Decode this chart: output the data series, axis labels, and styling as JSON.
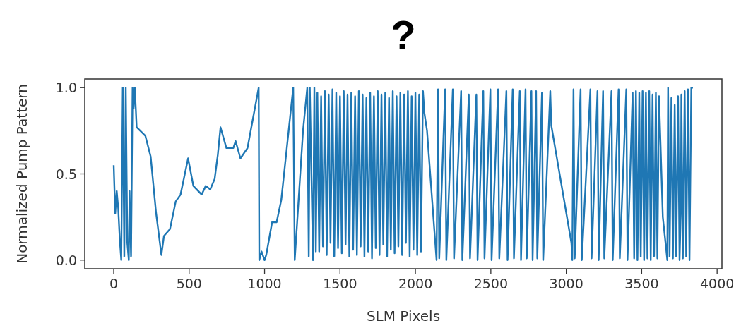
{
  "chart_data": {
    "type": "line",
    "title": "?",
    "xlabel": "SLM Pixels",
    "ylabel": "Normalized Pump Pattern",
    "xlim": [
      -192,
      4032
    ],
    "xticks": [
      0,
      500,
      1000,
      1500,
      2000,
      2500,
      3000,
      3500,
      4000
    ],
    "ylim": [
      -0.05,
      1.05
    ],
    "yticks": [
      {
        "value": 0,
        "label": "0.0"
      },
      {
        "value": 0.5,
        "label": "0.5"
      },
      {
        "value": 1,
        "label": "1.0"
      }
    ],
    "grid": false,
    "series": [
      {
        "color": "#1f77b4",
        "x": [
          0,
          10,
          20,
          30,
          40,
          50,
          60,
          70,
          80,
          90,
          100,
          105,
          115,
          125,
          132,
          140,
          152,
          210,
          245,
          280,
          316,
          333,
          373,
          411,
          443,
          493,
          528,
          583,
          610,
          640,
          669,
          690,
          708,
          747,
          793,
          808,
          840,
          887,
          961,
          965,
          980,
          1000,
          1011,
          1050,
          1080,
          1111,
          1190,
          1200,
          1255,
          1283,
          1293,
          1300,
          1321,
          1330,
          1340,
          1350,
          1362,
          1375,
          1387,
          1400,
          1412,
          1425,
          1437,
          1450,
          1462,
          1475,
          1487,
          1500,
          1512,
          1525,
          1537,
          1550,
          1562,
          1575,
          1587,
          1600,
          1612,
          1625,
          1637,
          1650,
          1662,
          1675,
          1687,
          1700,
          1712,
          1725,
          1737,
          1750,
          1762,
          1775,
          1787,
          1800,
          1812,
          1825,
          1837,
          1850,
          1862,
          1875,
          1887,
          1900,
          1912,
          1925,
          1937,
          1950,
          1962,
          1975,
          1987,
          2000,
          2012,
          2025,
          2037,
          2050,
          2060,
          2077,
          2140,
          2150,
          2158,
          2197,
          2205,
          2248,
          2256,
          2303,
          2311,
          2354,
          2362,
          2404,
          2412,
          2450,
          2458,
          2497,
          2505,
          2548,
          2556,
          2603,
          2611,
          2645,
          2653,
          2692,
          2700,
          2730,
          2738,
          2769,
          2777,
          2800,
          2808,
          2839,
          2847,
          2894,
          2901,
          3034,
          3040,
          3048,
          3056,
          3095,
          3103,
          3160,
          3168,
          3207,
          3215,
          3244,
          3252,
          3300,
          3308,
          3347,
          3355,
          3398,
          3406,
          3440,
          3450,
          3462,
          3472,
          3484,
          3494,
          3506,
          3516,
          3528,
          3538,
          3550,
          3560,
          3572,
          3582,
          3594,
          3604,
          3615,
          3640,
          3670,
          3675,
          3685,
          3697,
          3707,
          3719,
          3729,
          3741,
          3751,
          3760,
          3763,
          3773,
          3785,
          3795,
          3807,
          3817,
          3829,
          3840
        ],
        "values": [
          0.55,
          0.27,
          0.4,
          0.3,
          0.12,
          0.0,
          1.0,
          0.02,
          1.0,
          0.1,
          0.0,
          0.4,
          0.02,
          1.0,
          0.88,
          1.0,
          0.77,
          0.72,
          0.6,
          0.28,
          0.03,
          0.14,
          0.18,
          0.34,
          0.38,
          0.59,
          0.43,
          0.38,
          0.43,
          0.41,
          0.47,
          0.61,
          0.77,
          0.65,
          0.65,
          0.69,
          0.59,
          0.65,
          1.0,
          0.0,
          0.05,
          0.0,
          0.03,
          0.22,
          0.22,
          0.35,
          1.0,
          0.0,
          0.75,
          1.0,
          0.02,
          1.0,
          0.0,
          1.0,
          0.05,
          0.97,
          0.05,
          0.95,
          0.08,
          0.98,
          0.03,
          0.96,
          0.1,
          0.99,
          0.02,
          0.97,
          0.07,
          0.95,
          0.04,
          0.98,
          0.09,
          0.96,
          0.02,
          0.97,
          0.06,
          0.95,
          0.03,
          0.98,
          0.08,
          0.96,
          0.02,
          0.94,
          0.05,
          0.97,
          0.01,
          0.95,
          0.07,
          0.98,
          0.03,
          0.96,
          0.09,
          0.97,
          0.02,
          0.94,
          0.06,
          0.98,
          0.04,
          0.95,
          0.08,
          0.97,
          0.03,
          0.96,
          0.1,
          0.98,
          0.02,
          0.95,
          0.06,
          0.97,
          0.03,
          0.96,
          0.05,
          0.98,
          0.85,
          0.75,
          0.0,
          0.99,
          0.01,
          0.99,
          0.0,
          0.99,
          0.01,
          0.98,
          0.0,
          0.96,
          0.01,
          0.96,
          0.0,
          0.98,
          0.01,
          0.99,
          0.0,
          0.99,
          0.01,
          0.98,
          0.0,
          0.99,
          0.01,
          0.98,
          0.0,
          0.99,
          0.01,
          0.98,
          0.0,
          0.98,
          0.01,
          0.97,
          0.0,
          0.98,
          0.78,
          0.1,
          0.0,
          0.99,
          0.01,
          0.99,
          0.0,
          0.99,
          0.01,
          0.98,
          0.0,
          0.98,
          0.01,
          0.98,
          0.0,
          0.99,
          0.01,
          0.99,
          0.0,
          0.97,
          0.01,
          0.98,
          0.0,
          0.97,
          0.02,
          0.98,
          0.0,
          0.97,
          0.01,
          0.98,
          0.0,
          0.96,
          0.02,
          0.97,
          0.01,
          0.95,
          0.25,
          0.0,
          1.0,
          0.02,
          0.94,
          0.01,
          0.9,
          0.02,
          0.95,
          0.0,
          0.3,
          0.96,
          0.01,
          0.98,
          0.02,
          0.99,
          0.0,
          1.0,
          1.0
        ]
      }
    ]
  }
}
